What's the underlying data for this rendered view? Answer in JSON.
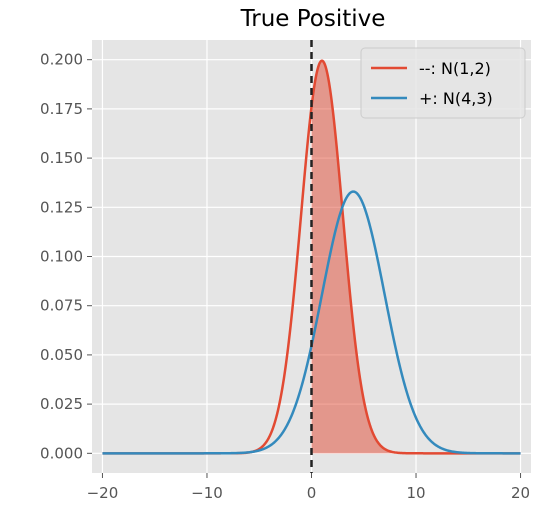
{
  "chart_data": {
    "type": "line",
    "title": "True Positive",
    "xlabel": "",
    "ylabel": "",
    "xlim": [
      -21,
      21
    ],
    "ylim": [
      -0.01,
      0.21
    ],
    "x_ticks": [
      -20,
      -10,
      0,
      10,
      20
    ],
    "x_tick_labels": [
      "−20",
      "−10",
      "0",
      "10",
      "20"
    ],
    "y_ticks": [
      0.0,
      0.025,
      0.05,
      0.075,
      0.1,
      0.125,
      0.15,
      0.175,
      0.2
    ],
    "y_tick_labels": [
      "0.000",
      "0.025",
      "0.050",
      "0.075",
      "0.100",
      "0.125",
      "0.150",
      "0.175",
      "0.200"
    ],
    "grid": true,
    "legend_position": "top-right",
    "x_range": [
      -20,
      20
    ],
    "series": [
      {
        "name": "--: N(1,2)",
        "distribution": "normal",
        "mean": 1,
        "std": 2,
        "color": "#e24a33"
      },
      {
        "name": "+: N(4,3)",
        "distribution": "normal",
        "mean": 4,
        "std": 3,
        "color": "#348abd"
      }
    ],
    "threshold": {
      "x": 0,
      "style": "dashed",
      "color": "#222222"
    },
    "shaded_region": {
      "series_index": 0,
      "from": 0,
      "to": 20,
      "color": "#e24a33",
      "opacity": 0.5
    }
  }
}
